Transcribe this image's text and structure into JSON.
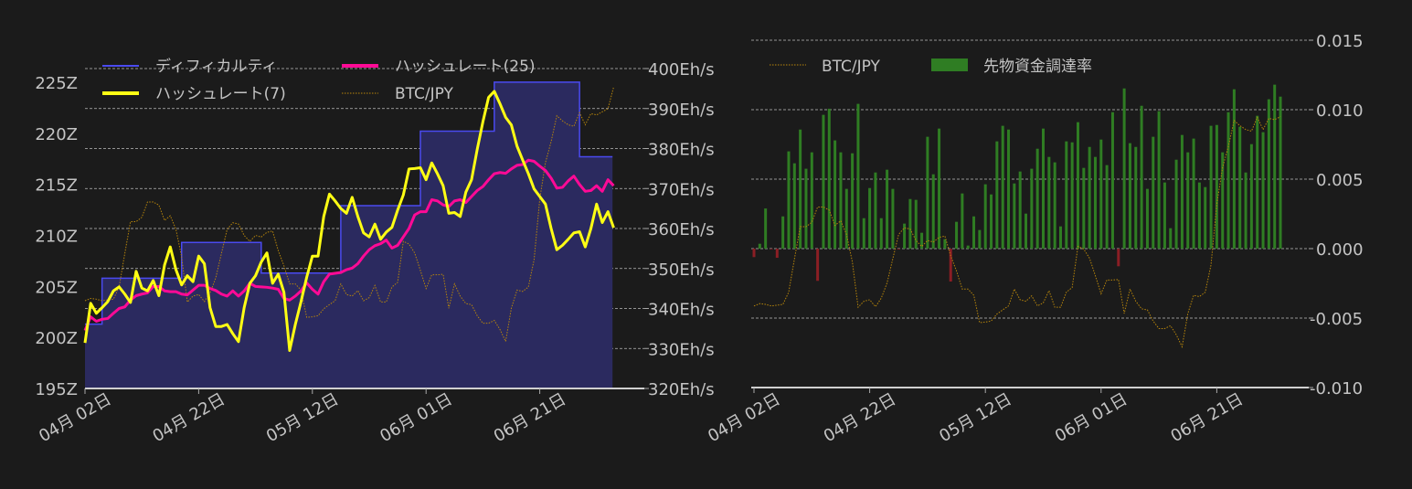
{
  "colors": {
    "background": "#1b1b1b",
    "difficulty_line": "#4a4af0",
    "difficulty_fill": "#2b2a5f",
    "hashrate7": "#ffff14",
    "hashrate25": "#ff0a96",
    "btc_jpy": "#b8860b",
    "funding_positive": "#2f7d23",
    "funding_negative": "#8b1e24"
  },
  "chart_data": [
    {
      "type": "line",
      "x_tick_labels": [
        "04月 02日",
        "04月 22日",
        "05月 12日",
        "06月 01日",
        "06月 21日"
      ],
      "x_tick_days": [
        0,
        20,
        40,
        60,
        80
      ],
      "x_start": "04-02",
      "left_axis": {
        "ticks": [
          "195Z",
          "200Z",
          "205Z",
          "210Z",
          "215Z",
          "220Z",
          "225Z"
        ],
        "ylim": [
          195,
          226.3
        ]
      },
      "right_axis": {
        "ticks": [
          "320Eh/s",
          "330Eh/s",
          "340Eh/s",
          "350Eh/s",
          "360Eh/s",
          "370Eh/s",
          "380Eh/s",
          "390Eh/s",
          "400Eh/s"
        ],
        "ylim": [
          320,
          400
        ]
      },
      "grid": true,
      "legend": {
        "position": "top",
        "entries": [
          "ディフィカルティ",
          "ハッシュレート(25)",
          "ハッシュレート(7)",
          "BTC/JPY"
        ]
      },
      "difficulty_steps": [
        {
          "from": "04-02",
          "value": 201.3
        },
        {
          "from": "04-05",
          "value": 205.8
        },
        {
          "from": "04-19",
          "value": 209.3
        },
        {
          "from": "05-03",
          "value": 206.3
        },
        {
          "from": "05-17",
          "value": 212.9
        },
        {
          "from": "05-31",
          "value": 220.2
        },
        {
          "from": "06-13",
          "value": 225.0
        },
        {
          "from": "06-28",
          "value": 217.7
        }
      ],
      "difficulty_end": "07-05",
      "hashrate7": [
        331.4,
        341.3,
        338.8,
        340.2,
        341.7,
        344.4,
        345.4,
        343.6,
        341.5,
        349.3,
        345.1,
        344.4,
        347.0,
        343.2,
        350.9,
        355.4,
        349.7,
        345.9,
        348.2,
        346.7,
        353.1,
        351.2,
        340.2,
        335.5,
        335.5,
        336.0,
        333.7,
        331.7,
        340.2,
        346.3,
        348.2,
        351.6,
        353.9,
        346.3,
        348.6,
        344.0,
        329.5,
        336.0,
        341.7,
        347.8,
        353.1,
        353.1,
        363.0,
        368.6,
        366.9,
        365.0,
        363.8,
        367.8,
        363.0,
        358.9,
        357.9,
        361.1,
        357.3,
        359.1,
        360.3,
        364.6,
        368.4,
        374.9,
        375.0,
        375.2,
        372.2,
        376.4,
        373.7,
        370.7,
        363.8,
        364.0,
        363.0,
        369.1,
        372.2,
        379.8,
        386.7,
        392.8,
        394.3,
        391.2,
        387.8,
        385.9,
        380.6,
        377.1,
        373.7,
        369.9,
        368.0,
        366.1,
        360.0,
        354.7,
        355.8,
        357.3,
        358.9,
        359.2,
        355.4,
        360.0,
        366.1,
        361.5,
        364.2,
        360.2
      ],
      "hashrate25": [
        334.5,
        337.9,
        336.8,
        337.3,
        337.5,
        338.8,
        340.0,
        340.4,
        342.1,
        343.2,
        343.6,
        343.9,
        345.5,
        345.5,
        344.4,
        344.2,
        344.2,
        343.6,
        343.4,
        344.6,
        345.8,
        345.8,
        345.0,
        344.5,
        343.6,
        343.1,
        344.4,
        343.1,
        344.4,
        346.3,
        345.5,
        345.4,
        345.3,
        345.1,
        344.8,
        342.5,
        342.1,
        343.1,
        344.4,
        346.4,
        344.8,
        343.6,
        346.7,
        348.6,
        348.8,
        349.0,
        349.7,
        350.1,
        351.2,
        353.1,
        354.7,
        355.7,
        356.2,
        357.1,
        355.1,
        355.8,
        357.9,
        360.0,
        363.4,
        364.2,
        364.2,
        367.2,
        366.9,
        365.9,
        365.5,
        366.9,
        367.2,
        366.5,
        368.0,
        369.5,
        370.5,
        372.2,
        373.7,
        374.0,
        373.8,
        374.9,
        375.8,
        376.0,
        377.1,
        376.8,
        375.6,
        374.5,
        372.6,
        370.1,
        370.3,
        371.9,
        373.1,
        371.0,
        369.3,
        369.5,
        370.7,
        369.3,
        372.2,
        370.7
      ],
      "btc_jpy_relative": [
        0.175,
        0.184,
        0.181,
        0.175,
        0.178,
        0.181,
        0.228,
        0.357,
        0.48,
        0.48,
        0.497,
        0.556,
        0.556,
        0.544,
        0.485,
        0.503,
        0.45,
        0.345,
        0.17,
        0.193,
        0.199,
        0.172,
        0.205,
        0.263,
        0.357,
        0.45,
        0.476,
        0.471,
        0.427,
        0.404,
        0.427,
        0.421,
        0.439,
        0.444,
        0.368,
        0.31,
        0.24,
        0.24,
        0.216,
        0.111,
        0.113,
        0.117,
        0.144,
        0.16,
        0.175,
        0.24,
        0.199,
        0.193,
        0.214,
        0.175,
        0.187,
        0.234,
        0.17,
        0.17,
        0.228,
        0.246,
        0.404,
        0.394,
        0.359,
        0.292,
        0.222,
        0.275,
        0.275,
        0.277,
        0.146,
        0.24,
        0.193,
        0.164,
        0.16,
        0.117,
        0.088,
        0.088,
        0.099,
        0.064,
        0.018,
        0.146,
        0.216,
        0.211,
        0.228,
        0.333,
        0.567,
        0.708,
        0.789,
        0.889,
        0.869,
        0.854,
        0.848,
        0.901,
        0.854,
        0.897,
        0.892,
        0.904,
        0.916,
        1.0
      ]
    },
    {
      "type": "bar",
      "x_tick_labels": [
        "04月 02日",
        "04月 22日",
        "05月 12日",
        "06月 01日",
        "06月 21日"
      ],
      "x_tick_days": [
        0,
        20,
        40,
        60,
        80
      ],
      "x_start": "04-02",
      "right_axis": {
        "ticks": [
          "-0.010",
          "-0.005",
          "0.000",
          "0.005",
          "0.010",
          "0.015"
        ],
        "ylim": [
          -0.01,
          0.015
        ]
      },
      "grid": true,
      "legend": {
        "position": "top-left",
        "entries": [
          "BTC/JPY",
          "先物資金調達率"
        ]
      },
      "btc_jpy_range_on_axis": [
        -0.0074,
        0.0113
      ],
      "funding_rate": [
        -0.00061,
        0.00035,
        0.00289,
        -4e-05,
        -0.00066,
        0.00232,
        0.007,
        0.00614,
        0.00857,
        0.00575,
        0.00693,
        -0.00232,
        0.00963,
        0.01007,
        0.00779,
        0.00693,
        0.0043,
        0.00686,
        0.01042,
        0.00219,
        0.00436,
        0.00548,
        0.00219,
        0.00568,
        0.0043,
        -2e-05,
        0.0018,
        0.00357,
        0.00351,
        0.00114,
        0.00805,
        0.00535,
        0.00864,
        0.00068,
        -0.00237,
        0.00193,
        0.00397,
        0.00022,
        0.00232,
        0.00134,
        0.00463,
        0.0039,
        0.00772,
        0.00884,
        0.00857,
        0.00469,
        0.00555,
        0.00252,
        0.00575,
        0.00719,
        0.00864,
        0.0066,
        0.00621,
        0.0016,
        0.00772,
        0.00765,
        0.0091,
        0.00581,
        0.00732,
        0.0066,
        0.00785,
        0.00601,
        0.00982,
        -0.00127,
        0.01153,
        0.00759,
        0.00732,
        0.01028,
        0.0043,
        0.00805,
        0.00989,
        0.00476,
        0.00147,
        0.0064,
        0.00818,
        0.00693,
        0.00792,
        0.00476,
        0.00443,
        0.00884,
        0.0089,
        0.00693,
        0.00982,
        0.01147,
        0.00877,
        0.00548,
        0.00752,
        0.00956,
        0.00838,
        0.01075,
        0.0118,
        0.01094
      ]
    }
  ]
}
